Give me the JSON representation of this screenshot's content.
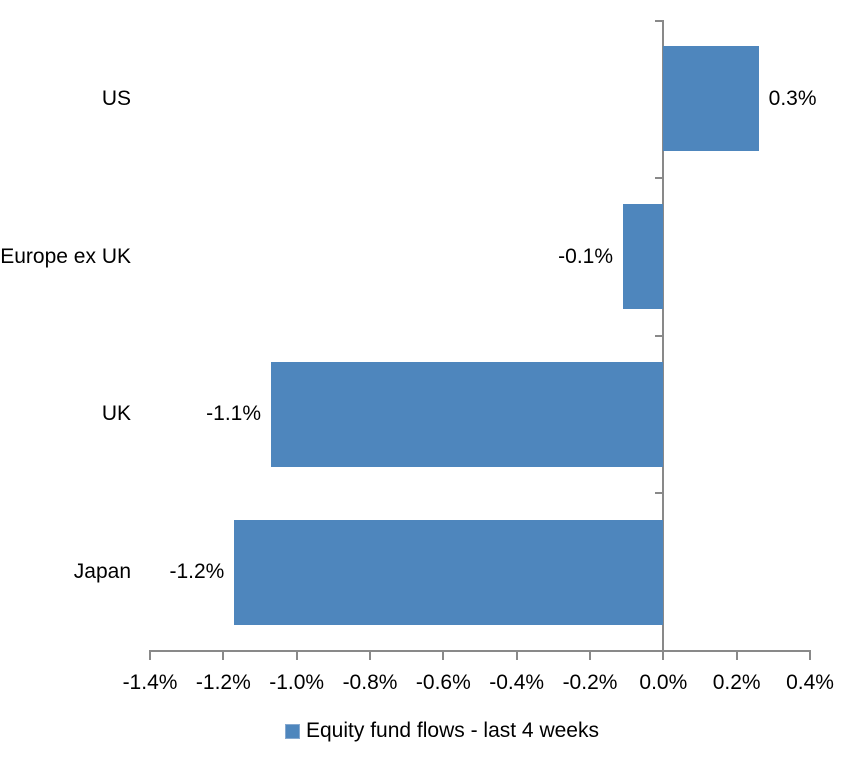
{
  "chart_data": {
    "type": "bar",
    "orientation": "horizontal",
    "title": "",
    "xlabel": "",
    "ylabel": "",
    "grid": false,
    "categories": [
      "US",
      "Europe ex UK",
      "UK",
      "Japan"
    ],
    "series": [
      {
        "name": "Equity fund flows - last 4 weeks",
        "values": [
          0.3,
          -0.1,
          -1.1,
          -1.2
        ],
        "data_labels": [
          "0.3%",
          "-0.1%",
          "-1.1%",
          "-1.2%"
        ],
        "plotted_values": [
          0.26,
          -0.11,
          -1.07,
          -1.17
        ]
      }
    ],
    "x_axis": {
      "min": -1.4,
      "max": 0.4,
      "tick_step": 0.2,
      "tick_labels": [
        "-1.4%",
        "-1.2%",
        "-1.0%",
        "-0.8%",
        "-0.6%",
        "-0.4%",
        "-0.2%",
        "0.0%",
        "0.2%",
        "0.4%"
      ]
    },
    "legend": {
      "position": "bottom",
      "marker": "square",
      "entries": [
        "Equity fund flows - last 4 weeks"
      ]
    },
    "colors": {
      "bar_fill": "#4E86BD",
      "legend_marker_fill": "#4E86BD",
      "legend_marker_border": "#86A9D0",
      "axis_line": "#898989",
      "label_text": "#000000",
      "background": "#FFFFFF"
    }
  }
}
